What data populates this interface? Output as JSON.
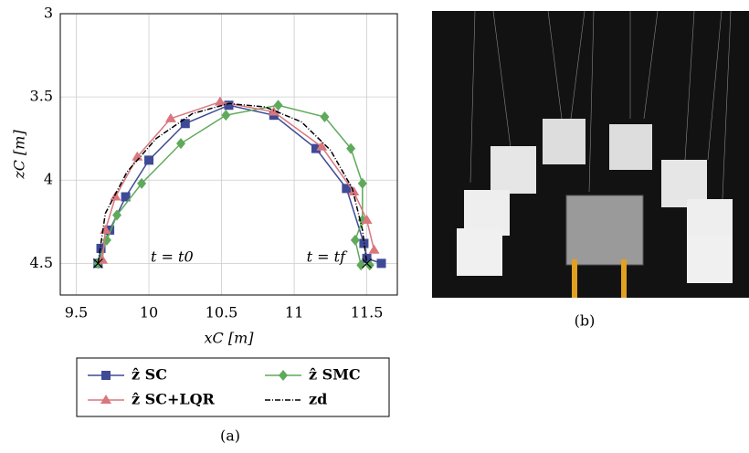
{
  "chart_data": {
    "type": "line",
    "x_label": "xC [m]",
    "y_label": "zC [m]",
    "xlim": [
      9.39,
      11.71
    ],
    "ylim": [
      4.69,
      3
    ],
    "xticks": [
      9.5,
      10,
      10.5,
      11,
      11.5
    ],
    "yticks": [
      3,
      3.5,
      4,
      4.5
    ],
    "grid": true,
    "annotations": [
      "t = t0",
      "t = tf"
    ],
    "caption": "(a)",
    "series": [
      {
        "name": "ẑ SC",
        "color": "#3f4a96",
        "marker": "square",
        "x": [
          9.65,
          9.67,
          9.73,
          9.84,
          10.0,
          10.25,
          10.55,
          10.86,
          11.15,
          11.36,
          11.48,
          11.5,
          11.6
        ],
        "values": [
          4.5,
          4.41,
          4.3,
          4.1,
          3.88,
          3.66,
          3.55,
          3.61,
          3.81,
          4.05,
          4.38,
          4.47,
          4.5
        ]
      },
      {
        "name": "ẑ SMC",
        "color": "#5faa5a",
        "marker": "diamond",
        "x": [
          9.65,
          9.71,
          9.78,
          9.95,
          10.22,
          10.53,
          10.89,
          11.21,
          11.39,
          11.47,
          11.47,
          11.42,
          11.46,
          11.52
        ],
        "values": [
          4.5,
          4.36,
          4.21,
          4.02,
          3.78,
          3.61,
          3.55,
          3.62,
          3.81,
          4.02,
          4.24,
          4.36,
          4.51,
          4.51
        ]
      },
      {
        "name": "ẑ SC+LQR",
        "color": "#d9777f",
        "marker": "triangle",
        "x": [
          9.68,
          9.7,
          9.77,
          9.92,
          10.15,
          10.49,
          10.86,
          11.19,
          11.41,
          11.5,
          11.55
        ],
        "values": [
          4.48,
          4.3,
          4.1,
          3.86,
          3.63,
          3.53,
          3.59,
          3.8,
          4.07,
          4.24,
          4.42
        ]
      },
      {
        "name": "zd",
        "color": "#000000",
        "dash": "6 2 1 2",
        "x": [
          9.65,
          9.7,
          9.85,
          10.05,
          10.3,
          10.55,
          10.8,
          11.05,
          11.25,
          11.4,
          11.47,
          11.5
        ],
        "values": [
          4.5,
          4.2,
          3.95,
          3.75,
          3.6,
          3.54,
          3.56,
          3.65,
          3.82,
          4.05,
          4.3,
          4.5
        ]
      }
    ]
  },
  "photo": {
    "caption": "(b)"
  }
}
